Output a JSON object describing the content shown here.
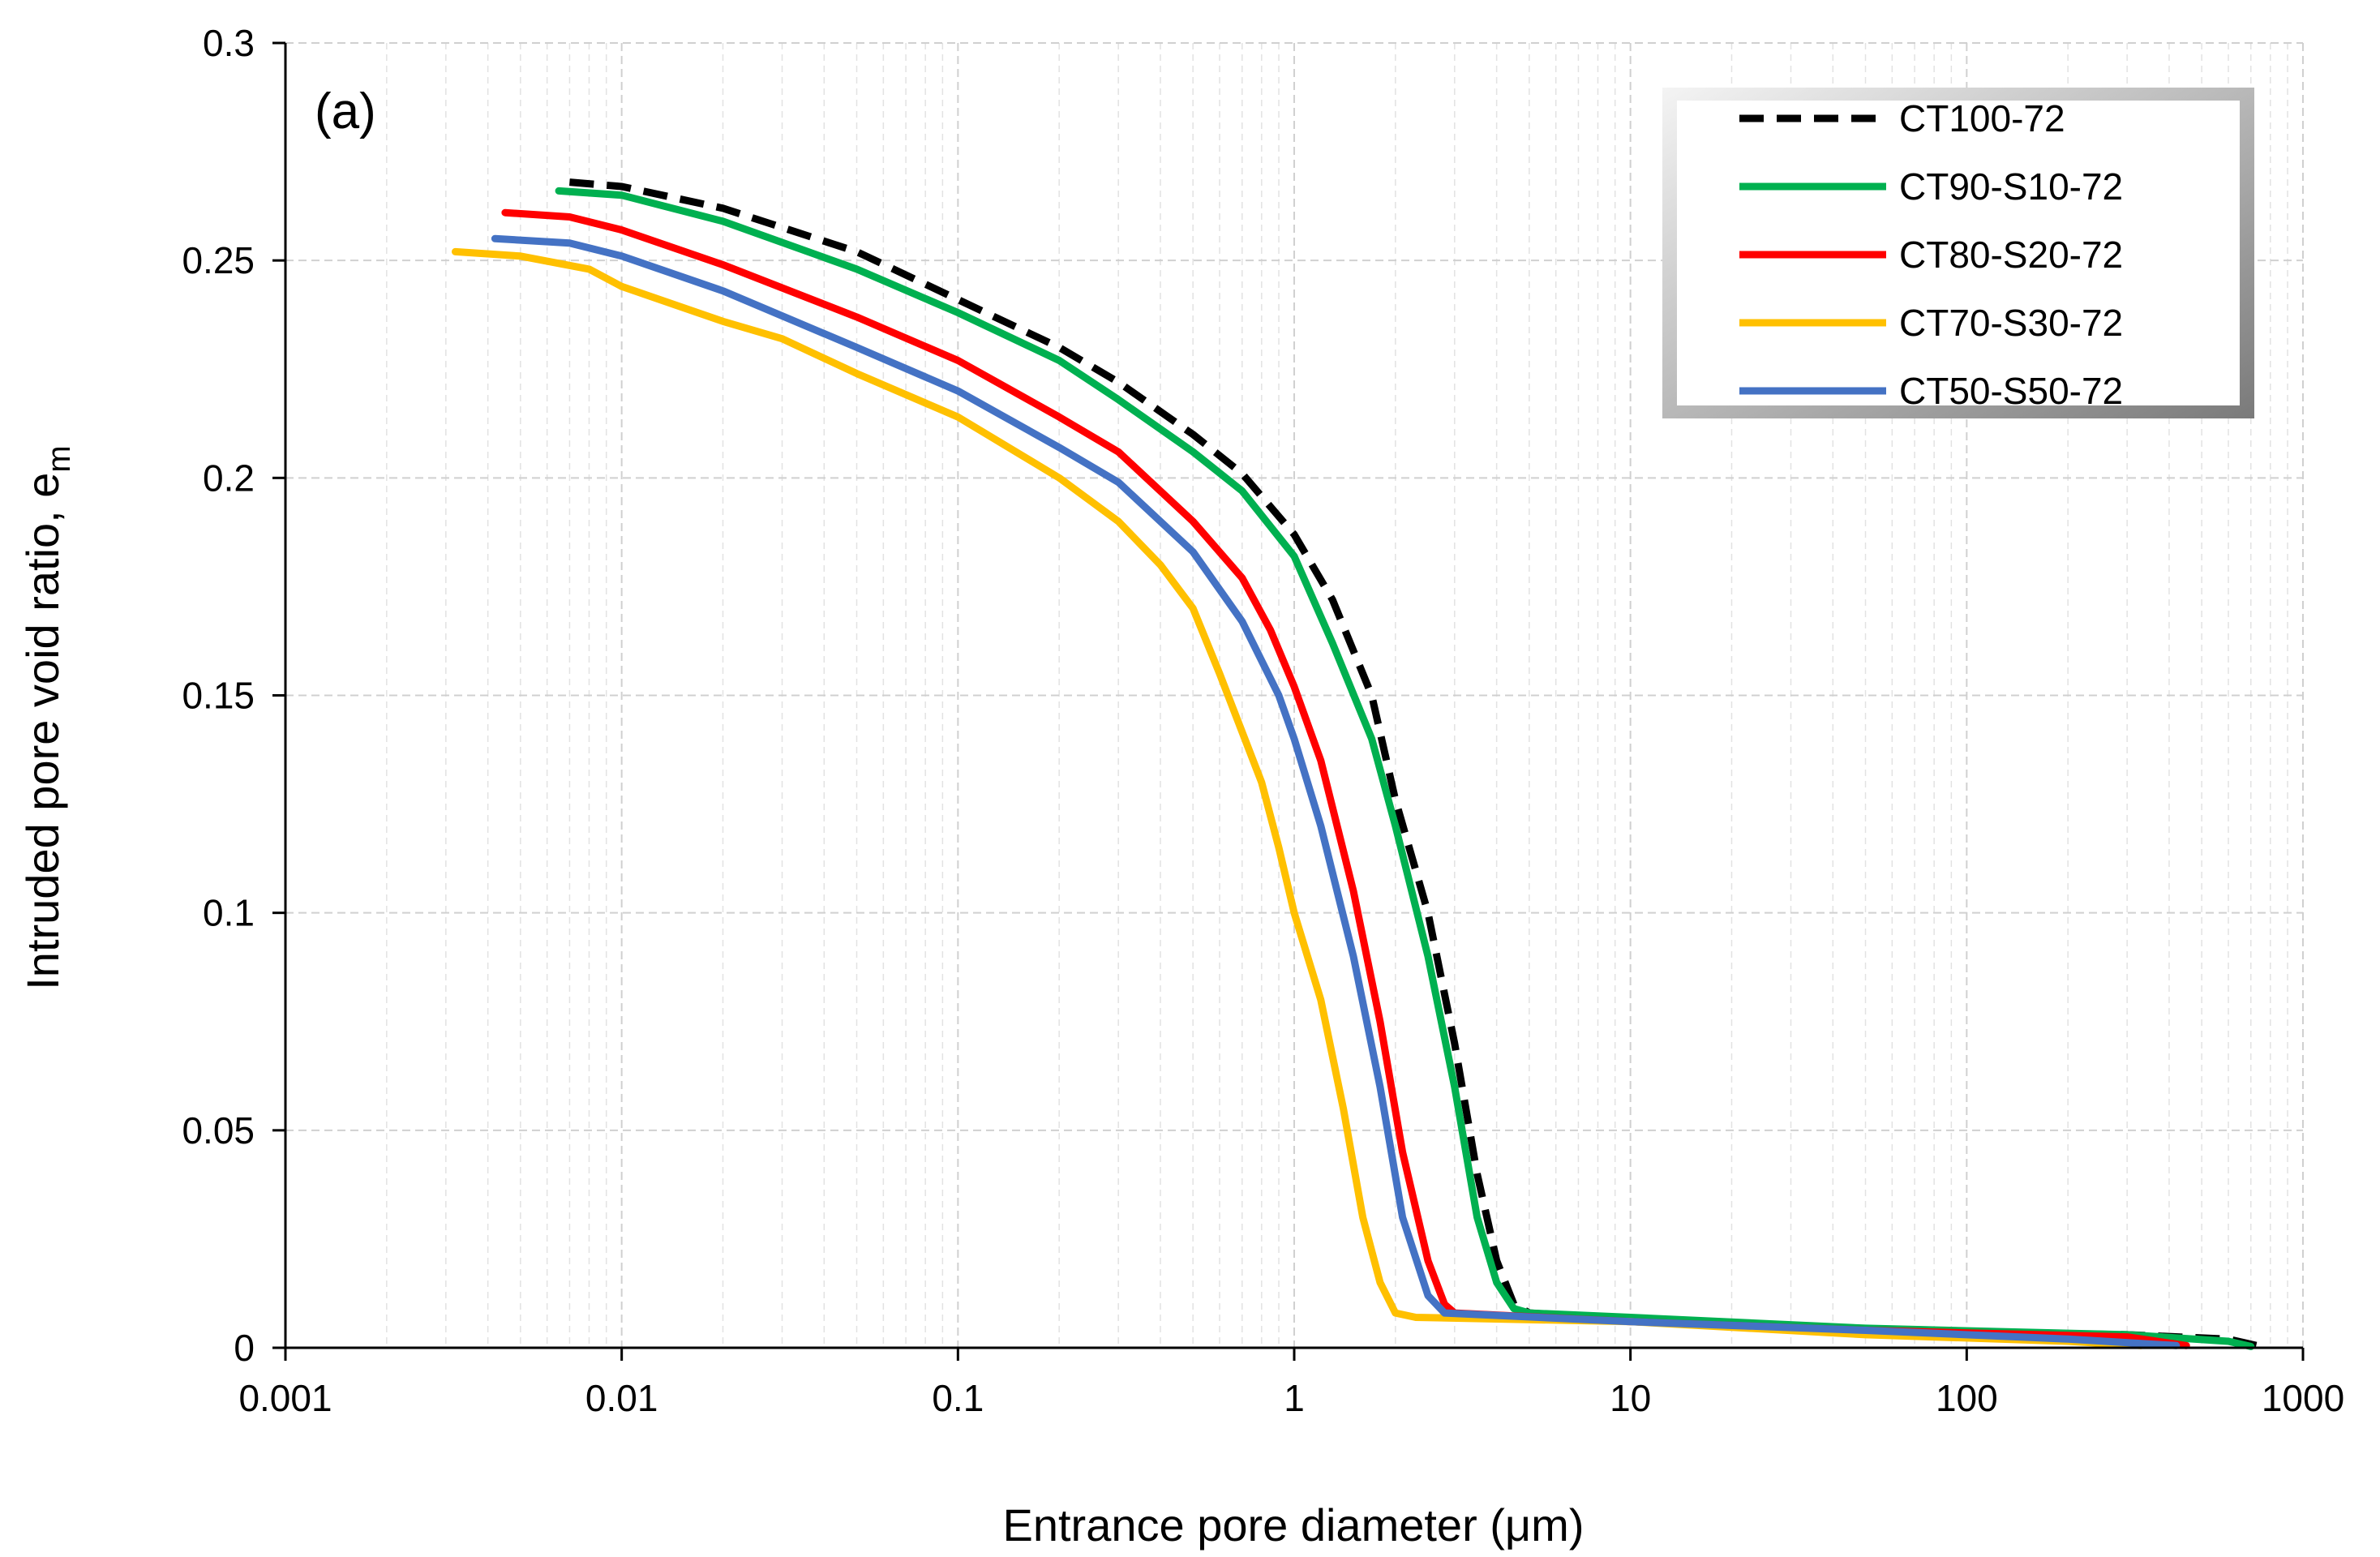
{
  "chart_data": {
    "type": "line",
    "title": "",
    "panel_label": "(a)",
    "xlabel": "Entrance pore diameter (μm)",
    "ylabel": "Intruded pore void ratio, e",
    "ylabel_subscript": "m",
    "xscale": "log",
    "xlim": [
      0.001,
      1000
    ],
    "ylim": [
      0,
      0.3
    ],
    "x_ticks": [
      0.001,
      0.01,
      0.1,
      1,
      10,
      100,
      1000
    ],
    "x_tick_labels": [
      "0.001",
      "0.01",
      "0.1",
      "1",
      "10",
      "100",
      "1000"
    ],
    "y_ticks": [
      0,
      0.05,
      0.1,
      0.15,
      0.2,
      0.25,
      0.3
    ],
    "y_tick_labels": [
      "0",
      "0.05",
      "0.1",
      "0.15",
      "0.2",
      "0.25",
      "0.3"
    ],
    "grid": true,
    "legend_position": "top-right",
    "series": [
      {
        "name": "CT100-72",
        "color": "#000000",
        "dashed": true,
        "points": [
          [
            0.007,
            0.268
          ],
          [
            0.01,
            0.267
          ],
          [
            0.02,
            0.262
          ],
          [
            0.05,
            0.252
          ],
          [
            0.1,
            0.241
          ],
          [
            0.2,
            0.23
          ],
          [
            0.3,
            0.222
          ],
          [
            0.5,
            0.21
          ],
          [
            0.7,
            0.201
          ],
          [
            1.0,
            0.187
          ],
          [
            1.3,
            0.172
          ],
          [
            1.7,
            0.15
          ],
          [
            2.0,
            0.126
          ],
          [
            2.5,
            0.1
          ],
          [
            3.0,
            0.07
          ],
          [
            3.5,
            0.04
          ],
          [
            4.0,
            0.02
          ],
          [
            4.5,
            0.01
          ],
          [
            5.0,
            0.008
          ],
          [
            10,
            0.0065
          ],
          [
            50,
            0.004
          ],
          [
            300,
            0.003
          ],
          [
            600,
            0.002
          ],
          [
            750,
            0.0003
          ]
        ]
      },
      {
        "name": "CT90-S10-72",
        "color": "#00b050",
        "dashed": false,
        "points": [
          [
            0.0065,
            0.266
          ],
          [
            0.01,
            0.265
          ],
          [
            0.02,
            0.259
          ],
          [
            0.05,
            0.248
          ],
          [
            0.1,
            0.238
          ],
          [
            0.2,
            0.227
          ],
          [
            0.3,
            0.218
          ],
          [
            0.5,
            0.206
          ],
          [
            0.7,
            0.197
          ],
          [
            1.0,
            0.182
          ],
          [
            1.3,
            0.162
          ],
          [
            1.7,
            0.14
          ],
          [
            2.0,
            0.12
          ],
          [
            2.5,
            0.09
          ],
          [
            3.0,
            0.06
          ],
          [
            3.5,
            0.03
          ],
          [
            4.0,
            0.015
          ],
          [
            4.5,
            0.009
          ],
          [
            5.0,
            0.008
          ],
          [
            10,
            0.007
          ],
          [
            50,
            0.0045
          ],
          [
            300,
            0.003
          ],
          [
            600,
            0.0015
          ],
          [
            700,
            0.0003
          ]
        ]
      },
      {
        "name": "CT80-S20-72",
        "color": "#ff0000",
        "dashed": false,
        "points": [
          [
            0.0045,
            0.261
          ],
          [
            0.007,
            0.26
          ],
          [
            0.01,
            0.257
          ],
          [
            0.02,
            0.249
          ],
          [
            0.05,
            0.237
          ],
          [
            0.1,
            0.227
          ],
          [
            0.2,
            0.214
          ],
          [
            0.3,
            0.206
          ],
          [
            0.5,
            0.19
          ],
          [
            0.7,
            0.177
          ],
          [
            0.85,
            0.165
          ],
          [
            1.0,
            0.152
          ],
          [
            1.2,
            0.135
          ],
          [
            1.5,
            0.105
          ],
          [
            1.8,
            0.075
          ],
          [
            2.1,
            0.045
          ],
          [
            2.5,
            0.02
          ],
          [
            2.8,
            0.01
          ],
          [
            3.0,
            0.008
          ],
          [
            10,
            0.006
          ],
          [
            50,
            0.004
          ],
          [
            300,
            0.0025
          ],
          [
            450,
            0.0005
          ]
        ]
      },
      {
        "name": "CT70-S30-72",
        "color": "#ffc000",
        "dashed": false,
        "points": [
          [
            0.0032,
            0.252
          ],
          [
            0.005,
            0.251
          ],
          [
            0.008,
            0.248
          ],
          [
            0.01,
            0.244
          ],
          [
            0.02,
            0.236
          ],
          [
            0.03,
            0.232
          ],
          [
            0.05,
            0.224
          ],
          [
            0.1,
            0.214
          ],
          [
            0.2,
            0.2
          ],
          [
            0.3,
            0.19
          ],
          [
            0.4,
            0.18
          ],
          [
            0.5,
            0.17
          ],
          [
            0.6,
            0.155
          ],
          [
            0.8,
            0.13
          ],
          [
            0.9,
            0.115
          ],
          [
            1.0,
            0.1
          ],
          [
            1.2,
            0.08
          ],
          [
            1.4,
            0.055
          ],
          [
            1.6,
            0.03
          ],
          [
            1.8,
            0.015
          ],
          [
            2.0,
            0.008
          ],
          [
            2.3,
            0.007
          ],
          [
            10,
            0.006
          ],
          [
            50,
            0.003
          ],
          [
            200,
            0.0015
          ],
          [
            330,
            0.0005
          ]
        ]
      },
      {
        "name": "CT50-S50-72",
        "color": "#4472c4",
        "dashed": false,
        "points": [
          [
            0.0042,
            0.255
          ],
          [
            0.007,
            0.254
          ],
          [
            0.01,
            0.251
          ],
          [
            0.02,
            0.243
          ],
          [
            0.05,
            0.23
          ],
          [
            0.1,
            0.22
          ],
          [
            0.2,
            0.207
          ],
          [
            0.3,
            0.199
          ],
          [
            0.5,
            0.183
          ],
          [
            0.7,
            0.167
          ],
          [
            0.9,
            0.15
          ],
          [
            1.0,
            0.14
          ],
          [
            1.2,
            0.12
          ],
          [
            1.5,
            0.09
          ],
          [
            1.8,
            0.06
          ],
          [
            2.1,
            0.03
          ],
          [
            2.5,
            0.012
          ],
          [
            2.8,
            0.008
          ],
          [
            10,
            0.006
          ],
          [
            50,
            0.004
          ],
          [
            200,
            0.002
          ],
          [
            420,
            0.0005
          ]
        ]
      }
    ]
  }
}
